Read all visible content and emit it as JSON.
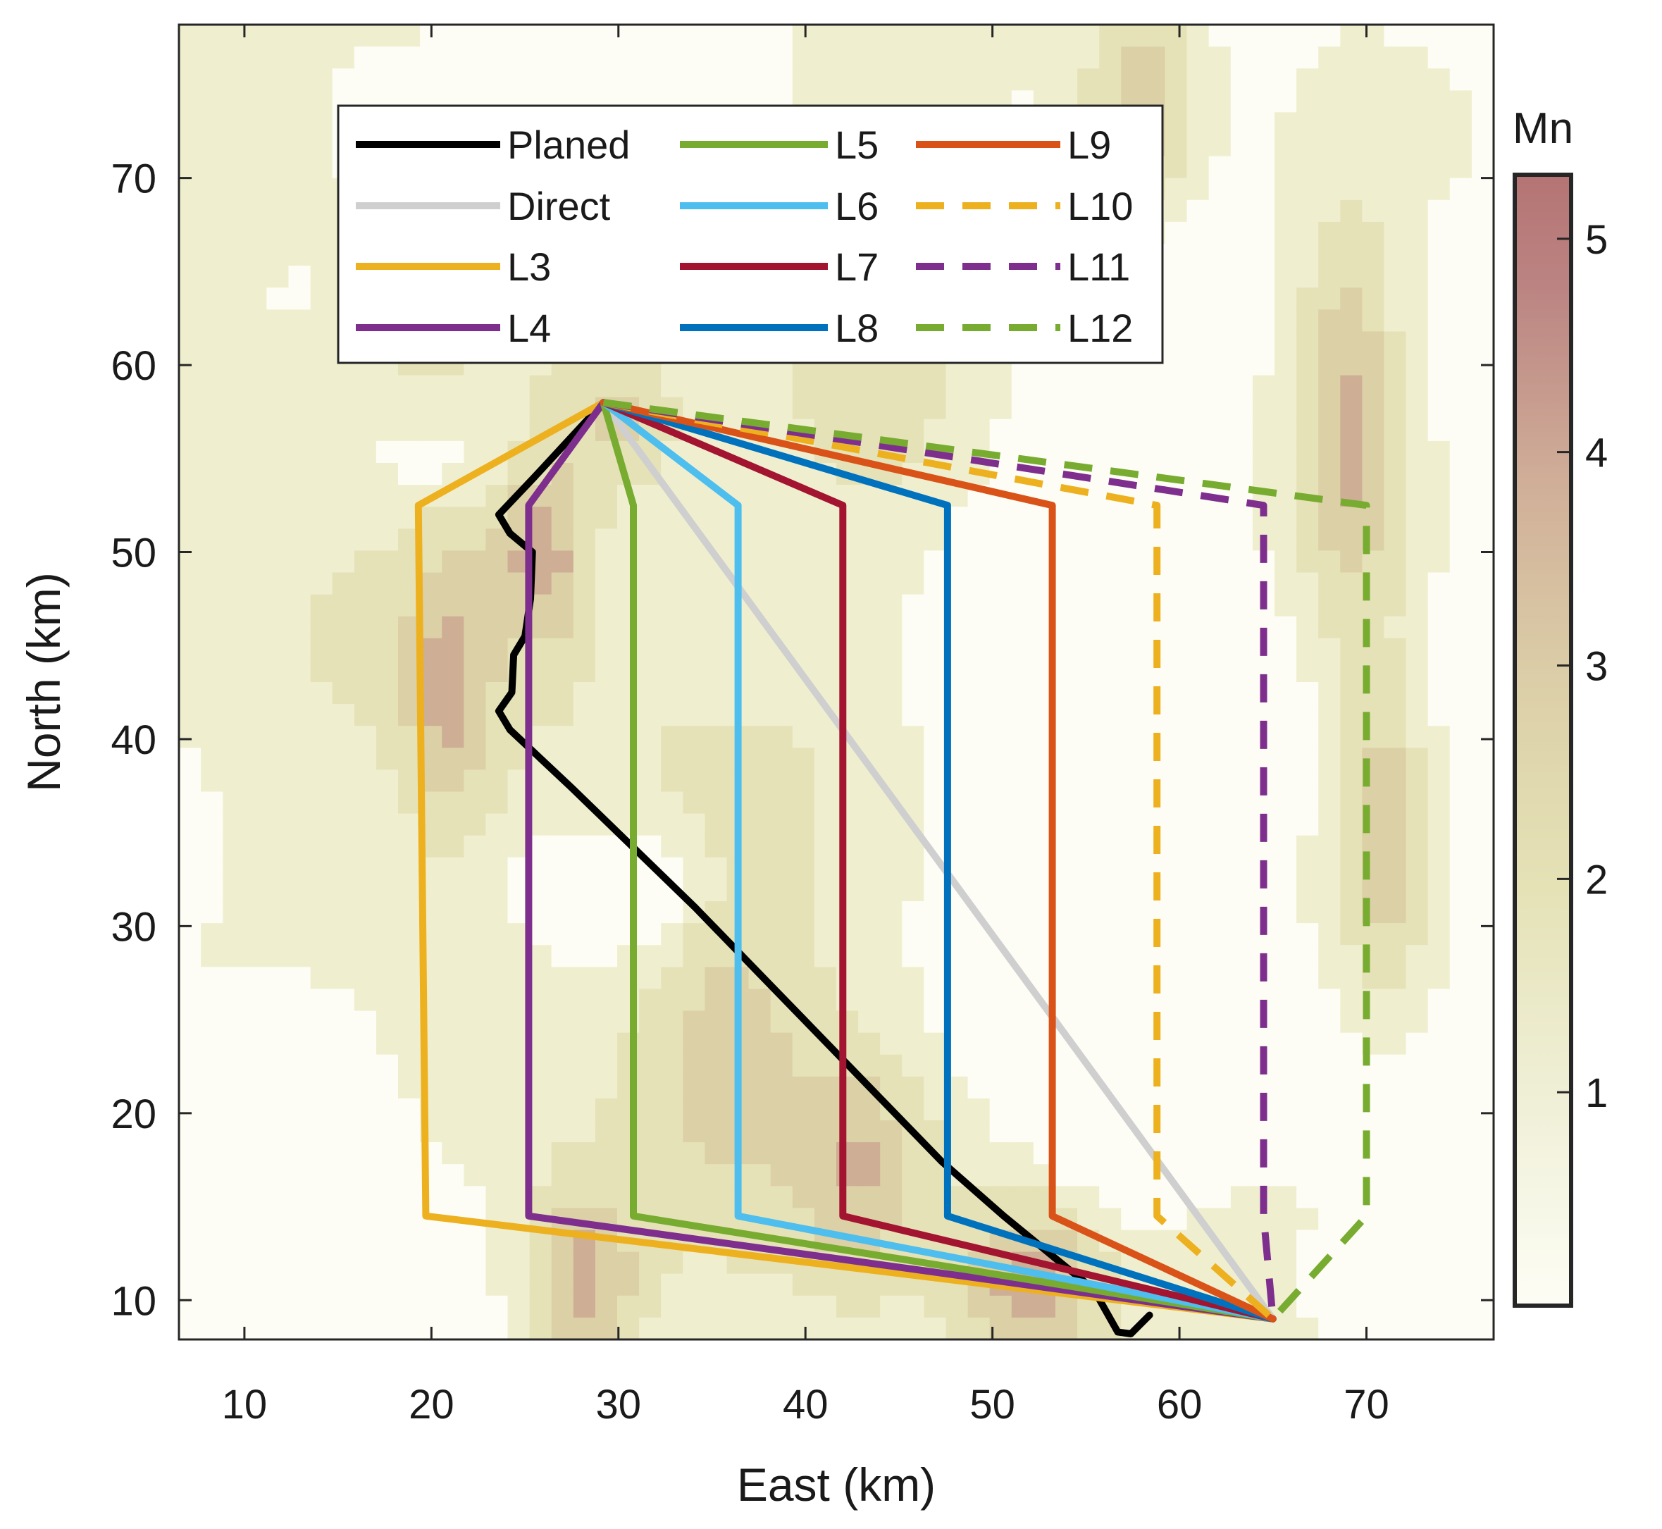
{
  "chart_data": {
    "type": "line",
    "xlabel": "East (km)",
    "ylabel": "North (km)",
    "xlim": [
      6.5,
      76.8
    ],
    "ylim": [
      7.9,
      78.2
    ],
    "xticks": [
      10,
      20,
      30,
      40,
      50,
      60,
      70
    ],
    "yticks": [
      10,
      20,
      30,
      40,
      50,
      60,
      70
    ],
    "grid": false,
    "legend_position": "top-center",
    "legend_columns": 3,
    "background": {
      "type": "filled-contour",
      "colorbar_label": "Mn",
      "colorbar_range": [
        0,
        5.3
      ],
      "colorbar_ticks": [
        1,
        2,
        3,
        4,
        5
      ],
      "colormap": [
        "#fdfdf5",
        "#efefd0",
        "#e6e2b8",
        "#dcd0a6",
        "#ceae94",
        "#b57878"
      ],
      "contour_line_color": "#7a7a7a"
    },
    "series": [
      {
        "name": "Planed",
        "color": "#000000",
        "style": "solid",
        "points": [
          [
            29.2,
            58
          ],
          [
            25.5,
            54
          ],
          [
            23.6,
            52
          ],
          [
            24.2,
            51
          ],
          [
            25.4,
            50
          ],
          [
            25.3,
            47.5
          ],
          [
            25,
            45.5
          ],
          [
            24.4,
            44.5
          ],
          [
            24.3,
            42.5
          ],
          [
            23.6,
            41.5
          ],
          [
            24.2,
            40.5
          ],
          [
            27.5,
            37.4
          ],
          [
            30.8,
            34.2
          ],
          [
            34.1,
            31.0
          ],
          [
            37.4,
            27.6
          ],
          [
            40.7,
            24.2
          ],
          [
            44.0,
            20.8
          ],
          [
            47.3,
            17.4
          ],
          [
            50.6,
            14.5
          ],
          [
            53.9,
            11.8
          ],
          [
            55.4,
            10.6
          ],
          [
            56.7,
            8.3
          ],
          [
            57.4,
            8.2
          ],
          [
            58.4,
            9.2
          ]
        ]
      },
      {
        "name": "Direct",
        "color": "#cfcfcf",
        "style": "solid",
        "points": [
          [
            29.2,
            58
          ],
          [
            65,
            9
          ]
        ]
      },
      {
        "name": "L3",
        "color": "#edb120",
        "style": "solid",
        "points": [
          [
            29.2,
            58
          ],
          [
            19.3,
            52.5
          ],
          [
            19.7,
            14.5
          ],
          [
            65,
            9
          ]
        ]
      },
      {
        "name": "L4",
        "color": "#7e2f8e",
        "style": "solid",
        "points": [
          [
            29.2,
            58
          ],
          [
            25.2,
            52.5
          ],
          [
            25.2,
            14.5
          ],
          [
            65,
            9
          ]
        ]
      },
      {
        "name": "L5",
        "color": "#77ac30",
        "style": "solid",
        "points": [
          [
            29.2,
            58
          ],
          [
            30.8,
            52.5
          ],
          [
            30.8,
            14.5
          ],
          [
            65,
            9
          ]
        ]
      },
      {
        "name": "L6",
        "color": "#4dbeee",
        "style": "solid",
        "points": [
          [
            29.2,
            58
          ],
          [
            36.4,
            52.5
          ],
          [
            36.4,
            14.5
          ],
          [
            65,
            9
          ]
        ]
      },
      {
        "name": "L7",
        "color": "#a2142f",
        "style": "solid",
        "points": [
          [
            29.2,
            58
          ],
          [
            42,
            52.5
          ],
          [
            42,
            14.5
          ],
          [
            65,
            9
          ]
        ]
      },
      {
        "name": "L8",
        "color": "#0072bd",
        "style": "solid",
        "points": [
          [
            29.2,
            58
          ],
          [
            47.6,
            52.5
          ],
          [
            47.6,
            14.5
          ],
          [
            65,
            9
          ]
        ]
      },
      {
        "name": "L9",
        "color": "#d95319",
        "style": "solid",
        "points": [
          [
            29.2,
            58
          ],
          [
            53.2,
            52.5
          ],
          [
            53.2,
            14.5
          ],
          [
            65,
            9
          ]
        ]
      },
      {
        "name": "L10",
        "color": "#edb120",
        "style": "dashed",
        "points": [
          [
            29.2,
            58
          ],
          [
            58.8,
            52.5
          ],
          [
            58.8,
            14.5
          ],
          [
            65,
            9
          ]
        ]
      },
      {
        "name": "L11",
        "color": "#7e2f8e",
        "style": "dashed",
        "points": [
          [
            29.2,
            58
          ],
          [
            64.5,
            52.5
          ],
          [
            64.5,
            14.5
          ],
          [
            65,
            9
          ]
        ]
      },
      {
        "name": "L12",
        "color": "#77ac30",
        "style": "dashed",
        "points": [
          [
            29.2,
            58
          ],
          [
            70,
            52.5
          ],
          [
            70,
            14.5
          ],
          [
            65,
            9
          ]
        ]
      }
    ]
  }
}
